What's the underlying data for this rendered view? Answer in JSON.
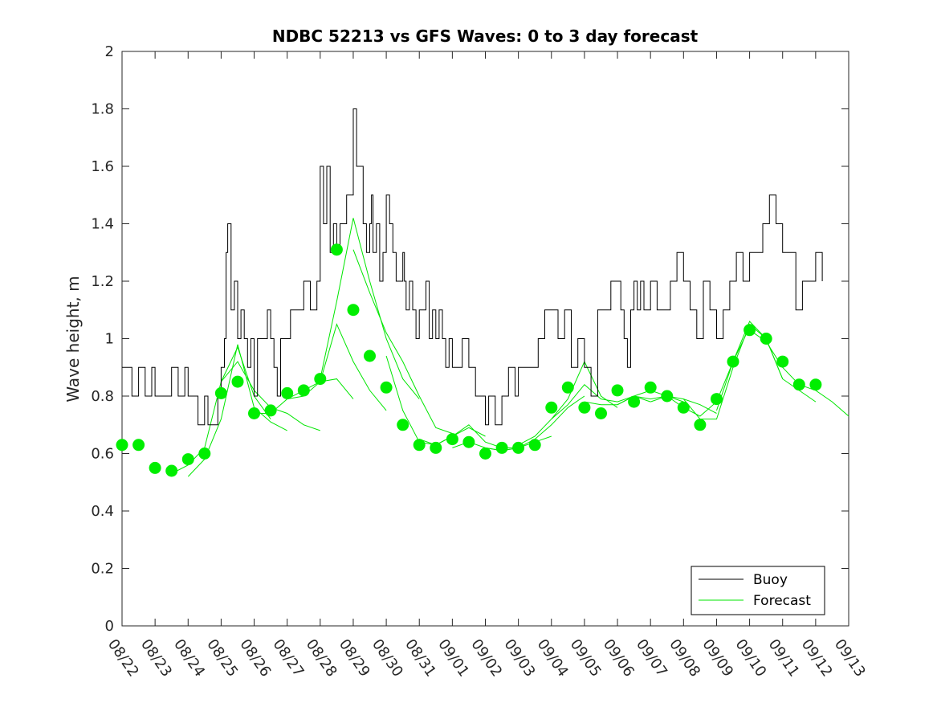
{
  "chart_data": {
    "type": "line",
    "title": "NDBC 52213 vs GFS Waves: 0 to 3 day forecast",
    "xlabel": "",
    "ylabel": "Wave height, m",
    "ylim": [
      0,
      2
    ],
    "yticks": [
      0,
      0.2,
      0.4,
      0.6,
      0.8,
      1,
      1.2,
      1.4,
      1.6,
      1.8,
      2
    ],
    "ytick_labels": [
      "0",
      "0.2",
      "0.4",
      "0.6",
      "0.8",
      "1",
      "1.2",
      "1.4",
      "1.6",
      "1.8",
      "2"
    ],
    "x_unit": "days since 08/22",
    "xlim": [
      0,
      22
    ],
    "xtick_labels": [
      "08/22",
      "08/23",
      "08/24",
      "08/25",
      "08/26",
      "08/27",
      "08/28",
      "08/29",
      "08/30",
      "08/31",
      "09/01",
      "09/02",
      "09/03",
      "09/04",
      "09/05",
      "09/06",
      "09/07",
      "09/08",
      "09/09",
      "09/10",
      "09/11",
      "09/12",
      "09/13"
    ],
    "legend": {
      "position": "bottom-right",
      "entries": [
        {
          "label": "Buoy",
          "color": "#000000"
        },
        {
          "label": "Forecast",
          "color": "#00e600"
        }
      ]
    },
    "colors": {
      "buoy": "#000000",
      "forecast": "#00e600",
      "analysis_marker": "#00ee00"
    },
    "series": [
      {
        "name": "Buoy",
        "x": [
          0.0,
          0.3,
          0.5,
          0.7,
          0.9,
          1.0,
          1.3,
          1.5,
          1.7,
          1.9,
          2.0,
          2.1,
          2.3,
          2.5,
          2.6,
          2.75,
          2.9,
          3.0,
          3.1,
          3.15,
          3.2,
          3.3,
          3.4,
          3.5,
          3.6,
          3.7,
          3.8,
          3.9,
          4.0,
          4.1,
          4.2,
          4.3,
          4.4,
          4.5,
          4.6,
          4.7,
          4.8,
          4.9,
          5.0,
          5.1,
          5.3,
          5.5,
          5.7,
          5.9,
          6.0,
          6.1,
          6.2,
          6.3,
          6.4,
          6.5,
          6.6,
          6.8,
          7.0,
          7.1,
          7.2,
          7.3,
          7.4,
          7.5,
          7.55,
          7.6,
          7.7,
          7.8,
          7.9,
          8.0,
          8.1,
          8.2,
          8.3,
          8.4,
          8.5,
          8.55,
          8.6,
          8.7,
          8.8,
          8.9,
          9.0,
          9.1,
          9.2,
          9.3,
          9.4,
          9.5,
          9.6,
          9.7,
          9.8,
          9.9,
          10.0,
          10.2,
          10.3,
          10.5,
          10.7,
          10.9,
          11.0,
          11.1,
          11.3,
          11.5,
          11.7,
          11.9,
          12.0,
          12.2,
          12.4,
          12.6,
          12.8,
          13.0,
          13.2,
          13.4,
          13.6,
          13.8,
          14.0,
          14.2,
          14.4,
          14.6,
          14.8,
          15.0,
          15.1,
          15.2,
          15.3,
          15.4,
          15.5,
          15.6,
          15.7,
          15.8,
          16.0,
          16.2,
          16.4,
          16.6,
          16.8,
          17.0,
          17.2,
          17.4,
          17.6,
          17.8,
          18.0,
          18.2,
          18.4,
          18.6,
          18.8,
          19.0,
          19.2,
          19.4,
          19.6,
          19.8,
          20.0,
          20.2,
          20.4,
          20.6,
          20.8,
          21.0,
          21.2
        ],
        "y": [
          0.9,
          0.8,
          0.9,
          0.8,
          0.9,
          0.8,
          0.8,
          0.9,
          0.8,
          0.9,
          0.8,
          0.8,
          0.7,
          0.8,
          0.7,
          0.7,
          0.8,
          0.9,
          1.0,
          1.3,
          1.4,
          1.1,
          1.2,
          1.0,
          1.1,
          1.0,
          0.9,
          1.0,
          0.8,
          1.0,
          1.0,
          1.0,
          1.1,
          1.0,
          0.9,
          0.8,
          1.0,
          1.0,
          1.0,
          1.1,
          1.1,
          1.2,
          1.1,
          1.2,
          1.6,
          1.4,
          1.6,
          1.3,
          1.4,
          1.3,
          1.4,
          1.5,
          1.8,
          1.6,
          1.6,
          1.4,
          1.3,
          1.4,
          1.5,
          1.3,
          1.4,
          1.2,
          1.3,
          1.5,
          1.4,
          1.3,
          1.2,
          1.2,
          1.3,
          1.2,
          1.1,
          1.2,
          1.1,
          1.0,
          1.1,
          1.1,
          1.2,
          1.0,
          1.1,
          1.0,
          1.1,
          1.0,
          0.9,
          1.0,
          0.9,
          0.9,
          1.0,
          0.9,
          0.8,
          0.8,
          0.7,
          0.8,
          0.7,
          0.8,
          0.9,
          0.8,
          0.9,
          0.9,
          0.9,
          1.0,
          1.1,
          1.1,
          1.0,
          1.1,
          0.9,
          1.0,
          0.9,
          0.8,
          1.1,
          1.1,
          1.2,
          1.2,
          1.1,
          1.0,
          0.9,
          1.1,
          1.2,
          1.1,
          1.2,
          1.1,
          1.2,
          1.1,
          1.1,
          1.2,
          1.3,
          1.2,
          1.1,
          1.0,
          1.2,
          1.1,
          1.0,
          1.1,
          1.2,
          1.3,
          1.2,
          1.3,
          1.3,
          1.4,
          1.5,
          1.4,
          1.3,
          1.3,
          1.1,
          1.2,
          1.2,
          1.3,
          1.2
        ]
      },
      {
        "name": "Forecast",
        "runs": [
          {
            "x": [
              1.5,
              2.0,
              2.5,
              3.0,
              3.5,
              4.0,
              4.5
            ],
            "y": [
              0.53,
              0.56,
              0.62,
              0.85,
              0.97,
              0.8,
              0.72
            ]
          },
          {
            "x": [
              2.0,
              2.5,
              3.0,
              3.5,
              4.0,
              4.5,
              5.0
            ],
            "y": [
              0.52,
              0.58,
              0.72,
              0.98,
              0.76,
              0.71,
              0.68
            ]
          },
          {
            "x": [
              3.0,
              3.5,
              4.0,
              4.5,
              5.0,
              5.5,
              6.0
            ],
            "y": [
              0.85,
              0.92,
              0.82,
              0.76,
              0.74,
              0.7,
              0.68
            ]
          },
          {
            "x": [
              4.0,
              4.5,
              5.0,
              5.5,
              6.0,
              6.5,
              7.0
            ],
            "y": [
              0.74,
              0.74,
              0.79,
              0.8,
              0.85,
              0.86,
              0.79
            ]
          },
          {
            "x": [
              5.0,
              5.5,
              6.0,
              6.5,
              7.0,
              7.5,
              8.0
            ],
            "y": [
              0.79,
              0.82,
              0.85,
              1.05,
              0.92,
              0.82,
              0.75
            ]
          },
          {
            "x": [
              6.0,
              6.5,
              7.0,
              7.5,
              8.0,
              8.5,
              9.0
            ],
            "y": [
              0.86,
              1.13,
              1.42,
              1.2,
              1.0,
              0.86,
              0.79
            ]
          },
          {
            "x": [
              7.0,
              7.5,
              8.0,
              8.5,
              9.0,
              9.5,
              10.0
            ],
            "y": [
              1.31,
              1.16,
              1.02,
              0.92,
              0.8,
              0.69,
              0.67
            ]
          },
          {
            "x": [
              8.0,
              8.5,
              9.0,
              9.5,
              10.0,
              10.5,
              11.0
            ],
            "y": [
              0.94,
              0.75,
              0.64,
              0.63,
              0.66,
              0.69,
              0.66
            ]
          },
          {
            "x": [
              9.0,
              9.5,
              10.0,
              10.5,
              11.0,
              11.5,
              12.0
            ],
            "y": [
              0.65,
              0.63,
              0.66,
              0.7,
              0.64,
              0.62,
              0.62
            ]
          },
          {
            "x": [
              10.0,
              10.5,
              11.0,
              11.5,
              12.0,
              12.5,
              13.0
            ],
            "y": [
              0.62,
              0.64,
              0.62,
              0.61,
              0.62,
              0.64,
              0.66
            ]
          },
          {
            "x": [
              11.0,
              11.5,
              12.0,
              12.5,
              13.0,
              13.5,
              14.0
            ],
            "y": [
              0.62,
              0.61,
              0.62,
              0.65,
              0.7,
              0.76,
              0.8
            ]
          },
          {
            "x": [
              12.0,
              12.5,
              13.0,
              13.5,
              14.0,
              14.5,
              15.0
            ],
            "y": [
              0.63,
              0.66,
              0.72,
              0.79,
              0.92,
              0.8,
              0.76
            ]
          },
          {
            "x": [
              13.0,
              13.5,
              14.0,
              14.5,
              15.0,
              15.5,
              16.0
            ],
            "y": [
              0.72,
              0.77,
              0.84,
              0.79,
              0.78,
              0.8,
              0.78
            ]
          },
          {
            "x": [
              14.0,
              14.5,
              15.0,
              15.5,
              16.0,
              16.5,
              17.0
            ],
            "y": [
              0.78,
              0.77,
              0.77,
              0.8,
              0.82,
              0.8,
              0.78
            ]
          },
          {
            "x": [
              15.0,
              15.5,
              16.0,
              16.5,
              17.0,
              17.5,
              18.0
            ],
            "y": [
              0.77,
              0.8,
              0.79,
              0.8,
              0.79,
              0.77,
              0.74
            ]
          },
          {
            "x": [
              16.0,
              16.5,
              17.0,
              17.5,
              18.0,
              18.5,
              19.0
            ],
            "y": [
              0.78,
              0.8,
              0.76,
              0.73,
              0.78,
              0.92,
              1.04
            ]
          },
          {
            "x": [
              17.0,
              17.5,
              18.0,
              18.5,
              19.0,
              19.5,
              20.0
            ],
            "y": [
              0.79,
              0.72,
              0.72,
              0.9,
              1.05,
              1.0,
              0.86
            ]
          },
          {
            "x": [
              18.0,
              18.5,
              19.0,
              19.5,
              20.0,
              20.5,
              21.0
            ],
            "y": [
              0.75,
              0.92,
              1.06,
              1.0,
              0.86,
              0.82,
              0.78
            ]
          },
          {
            "x": [
              19.0,
              19.5,
              20.0,
              20.5,
              21.0,
              21.5,
              22.0
            ],
            "y": [
              1.03,
              0.99,
              0.9,
              0.84,
              0.82,
              0.78,
              0.73
            ]
          }
        ]
      },
      {
        "name": "Analysis points",
        "x": [
          0.0,
          0.5,
          1.0,
          1.5,
          2.0,
          2.5,
          3.0,
          3.5,
          4.0,
          4.5,
          5.0,
          5.5,
          6.0,
          6.5,
          7.0,
          7.5,
          8.0,
          8.5,
          9.0,
          9.5,
          10.0,
          10.5,
          11.0,
          11.5,
          12.0,
          12.5,
          13.0,
          13.5,
          14.0,
          14.5,
          15.0,
          15.5,
          16.0,
          16.5,
          17.0,
          17.5,
          18.0,
          18.5,
          19.0,
          19.5,
          20.0,
          20.5,
          21.0
        ],
        "y": [
          0.63,
          0.63,
          0.55,
          0.54,
          0.58,
          0.6,
          0.81,
          0.85,
          0.74,
          0.75,
          0.81,
          0.82,
          0.86,
          1.31,
          1.1,
          0.94,
          0.83,
          0.7,
          0.63,
          0.62,
          0.65,
          0.64,
          0.6,
          0.62,
          0.62,
          0.63,
          0.76,
          0.83,
          0.76,
          0.74,
          0.82,
          0.78,
          0.83,
          0.8,
          0.76,
          0.7,
          0.79,
          0.92,
          1.03,
          1.0,
          0.92,
          0.84,
          0.84
        ]
      }
    ]
  }
}
